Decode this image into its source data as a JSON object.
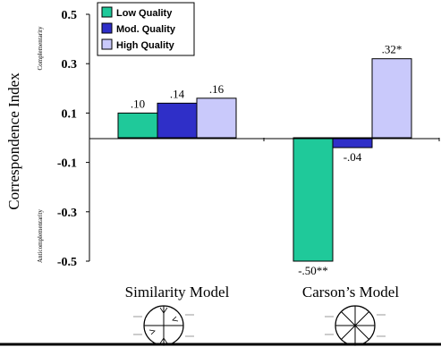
{
  "chart_data": {
    "type": "bar",
    "ylabel": "Correspondence Index",
    "ylabel_top": "Complementarity",
    "ylabel_bottom": "Anticomplementarity",
    "ylim": [
      -0.5,
      0.5
    ],
    "yticks": [
      {
        "value": 0.5,
        "label": "0.5"
      },
      {
        "value": 0.3,
        "label": "0.3"
      },
      {
        "value": 0.1,
        "label": "0.1"
      },
      {
        "value": -0.1,
        "label": "-0.1"
      },
      {
        "value": -0.3,
        "label": "-0.3"
      },
      {
        "value": -0.5,
        "label": "-0.5"
      }
    ],
    "categories": [
      "Similarity Model",
      "Carson’s Model"
    ],
    "legend_position": "top-left",
    "series": [
      {
        "name": "Low Quality",
        "color": "#1fc99a",
        "values": [
          0.1,
          -0.5
        ],
        "labels": [
          ".10",
          "-.50**"
        ]
      },
      {
        "name": "Mod. Quality",
        "color": "#2f2fc8",
        "values": [
          0.14,
          -0.04
        ],
        "labels": [
          ".14",
          "-.04"
        ]
      },
      {
        "name": "High Quality",
        "color": "#c9c9fb",
        "values": [
          0.16,
          0.32
        ],
        "labels": [
          ".16",
          ".32*"
        ]
      }
    ]
  }
}
